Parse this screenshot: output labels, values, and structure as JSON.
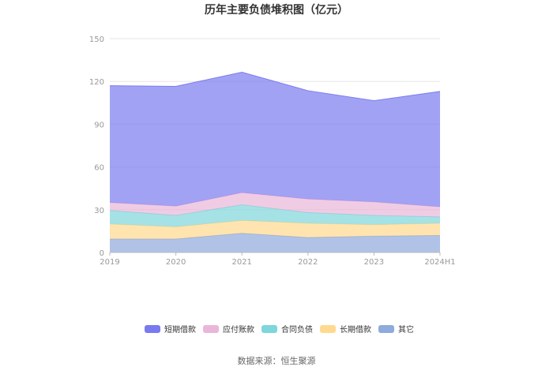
{
  "chart_data": {
    "type": "area",
    "stacked": true,
    "title": "历年主要负债堆积图（亿元）",
    "categories": [
      "2019",
      "2020",
      "2021",
      "2022",
      "2023",
      "2024H1"
    ],
    "ylim": [
      0,
      150
    ],
    "yticks": [
      "0",
      "30",
      "60",
      "90",
      "120",
      "150"
    ],
    "grid": true,
    "legend_position": "bottom",
    "series": [
      {
        "name": "其它",
        "color": "#8FAADC",
        "values": [
          9.5,
          9.5,
          13.5,
          10.5,
          11.5,
          12.0
        ]
      },
      {
        "name": "长期借款",
        "color": "#FFD98F",
        "values": [
          10.5,
          8.5,
          9.0,
          10.0,
          8.0,
          8.5
        ]
      },
      {
        "name": "合同负债",
        "color": "#7FD6DC",
        "values": [
          9.5,
          8.0,
          11.0,
          7.5,
          6.5,
          4.5
        ]
      },
      {
        "name": "应付账款",
        "color": "#E9B6D9",
        "values": [
          5.5,
          6.5,
          8.5,
          9.5,
          9.5,
          7.0
        ]
      },
      {
        "name": "短期借款",
        "color": "#7A7AF0",
        "values": [
          82.0,
          84.0,
          84.5,
          76.0,
          71.0,
          81.0
        ]
      }
    ],
    "legend_order": [
      "短期借款",
      "应付账款",
      "合同负债",
      "长期借款",
      "其它"
    ],
    "source": "数据来源：恒生聚源"
  }
}
